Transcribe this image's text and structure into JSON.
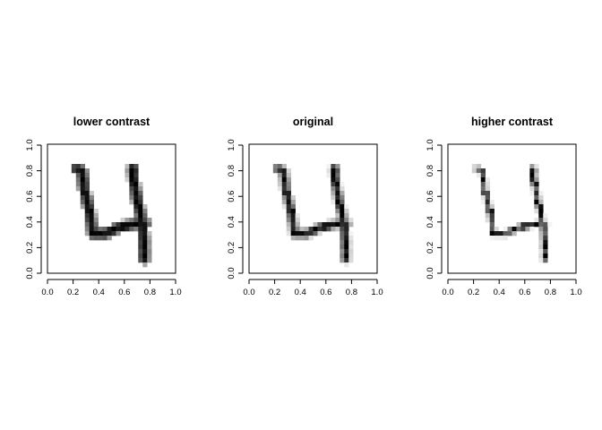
{
  "chart_data": [
    {
      "type": "heatmap",
      "title": "lower contrast",
      "xlabel": "",
      "ylabel": "",
      "xlim": [
        0,
        1
      ],
      "ylim": [
        0,
        1
      ],
      "x_ticks": [
        "0.0",
        "0.2",
        "0.4",
        "0.6",
        "0.8",
        "1.0"
      ],
      "y_ticks": [
        "0.0",
        "0.2",
        "0.4",
        "0.6",
        "0.8",
        "1.0"
      ],
      "grid": false,
      "contrast_gamma": 0.45,
      "colors": {
        "ink": "#000000",
        "paper": "#ffffff"
      }
    },
    {
      "type": "heatmap",
      "title": "original",
      "xlabel": "",
      "ylabel": "",
      "xlim": [
        0,
        1
      ],
      "ylim": [
        0,
        1
      ],
      "x_ticks": [
        "0.0",
        "0.2",
        "0.4",
        "0.6",
        "0.8",
        "1.0"
      ],
      "y_ticks": [
        "0.0",
        "0.2",
        "0.4",
        "0.6",
        "0.8",
        "1.0"
      ],
      "grid": false,
      "contrast_gamma": 1.0,
      "colors": {
        "ink": "#000000",
        "paper": "#ffffff"
      }
    },
    {
      "type": "heatmap",
      "title": "higher contrast",
      "xlabel": "",
      "ylabel": "",
      "xlim": [
        0,
        1
      ],
      "ylim": [
        0,
        1
      ],
      "x_ticks": [
        "0.0",
        "0.2",
        "0.4",
        "0.6",
        "0.8",
        "1.0"
      ],
      "y_ticks": [
        "0.0",
        "0.2",
        "0.4",
        "0.6",
        "0.8",
        "1.0"
      ],
      "grid": false,
      "contrast_gamma": 2.6,
      "colors": {
        "ink": "#000000",
        "paper": "#ffffff"
      }
    }
  ],
  "image_grid": {
    "rows": 28,
    "cols": 28,
    "strokes": [
      {
        "name": "left-stroke",
        "points": [
          [
            0.22,
            0.82
          ],
          [
            0.26,
            0.8
          ],
          [
            0.28,
            0.65
          ],
          [
            0.32,
            0.5
          ],
          [
            0.35,
            0.3
          ]
        ]
      },
      {
        "name": "bottom-stroke",
        "points": [
          [
            0.35,
            0.3
          ],
          [
            0.45,
            0.3
          ],
          [
            0.55,
            0.35
          ],
          [
            0.7,
            0.38
          ],
          [
            0.77,
            0.38
          ]
        ]
      },
      {
        "name": "right-stroke",
        "points": [
          [
            0.67,
            0.82
          ],
          [
            0.68,
            0.7
          ],
          [
            0.71,
            0.55
          ],
          [
            0.74,
            0.42
          ],
          [
            0.76,
            0.25
          ],
          [
            0.76,
            0.1
          ]
        ]
      }
    ]
  }
}
